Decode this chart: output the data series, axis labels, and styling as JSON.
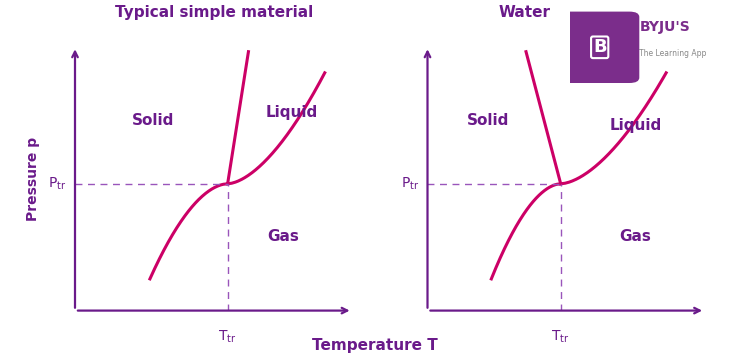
{
  "title_left": "Typical simple material",
  "title_right": "Water",
  "xlabel": "Temperature T",
  "ylabel": "Pressure p",
  "label_solid": "Solid",
  "label_liquid": "Liquid",
  "label_gas": "Gas",
  "curve_color": "#cc0066",
  "text_color": "#6a1a8a",
  "axis_color": "#6a1a8a",
  "dashed_color": "#9955bb",
  "curve_lw": 2.2,
  "axis_lw": 1.6,
  "figsize": [
    7.5,
    3.57
  ],
  "dpi": 100,
  "logo_bg": "#7b2d8b"
}
